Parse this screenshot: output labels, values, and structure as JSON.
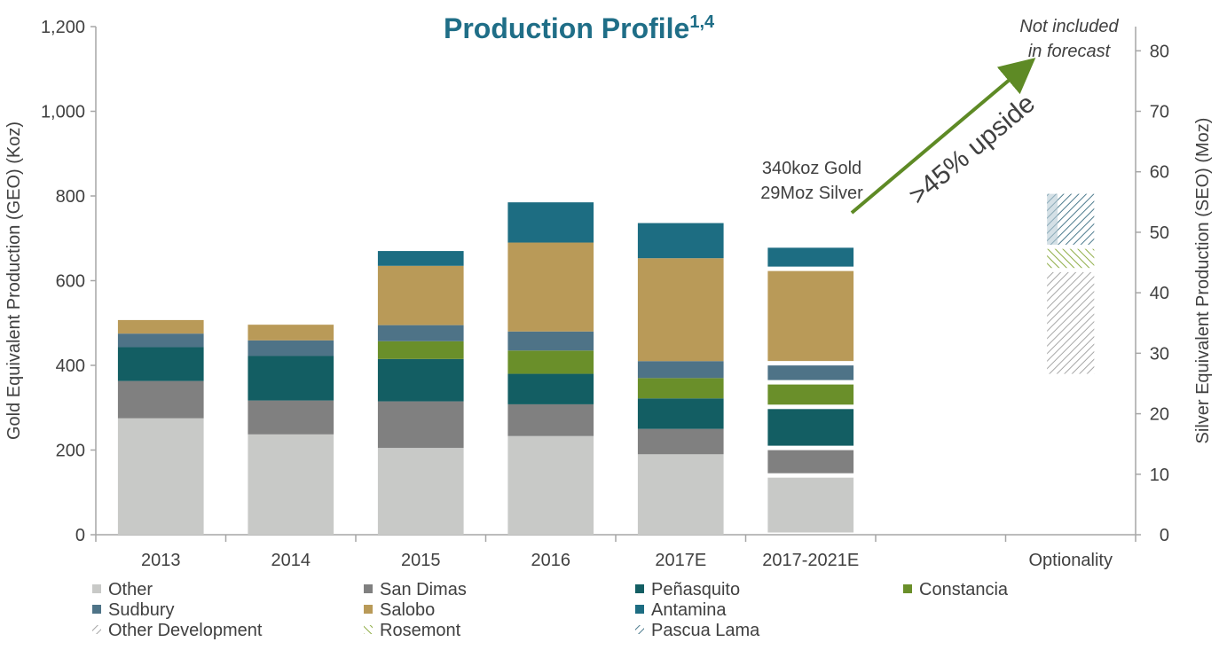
{
  "chart_data": {
    "type": "bar",
    "stacked": true,
    "title": "Production Profile",
    "title_superscript": "1,4",
    "ylabel_left": "Gold Equivalent  Production (GEO) (Koz)",
    "ylabel_right": "Silver Equivalent  Production (SEO) (Moz)",
    "ylim_left": [
      0,
      1200
    ],
    "yticks_left": [
      "0",
      "200",
      "400",
      "600",
      "800",
      "1,000",
      "1,200"
    ],
    "ylim_right": [
      0,
      84
    ],
    "yticks_right": [
      "0",
      "10",
      "20",
      "30",
      "40",
      "50",
      "60",
      "70",
      "80"
    ],
    "categories": [
      "2013",
      "2014",
      "2015",
      "2016",
      "2017E",
      "2017-2021E",
      "",
      "Optionality"
    ],
    "series": [
      {
        "name": "Other",
        "color": "#c8c9c7",
        "values": [
          275,
          237,
          205,
          233,
          190,
          140,
          null,
          null
        ]
      },
      {
        "name": "San Dimas",
        "color": "#808080",
        "values": [
          88,
          80,
          110,
          75,
          60,
          65,
          null,
          null
        ]
      },
      {
        "name": "Peñasquito",
        "color": "#135e63",
        "values": [
          80,
          105,
          100,
          72,
          72,
          97,
          null,
          null
        ]
      },
      {
        "name": "Constancia",
        "color": "#6a8f2a",
        "values": [
          0,
          0,
          42,
          55,
          48,
          58,
          null,
          null
        ]
      },
      {
        "name": "Sudbury",
        "color": "#4e7387",
        "values": [
          32,
          37,
          38,
          45,
          40,
          45,
          null,
          null
        ]
      },
      {
        "name": "Salobo",
        "color": "#b99a58",
        "values": [
          32,
          37,
          140,
          210,
          243,
          223,
          null,
          null
        ]
      },
      {
        "name": "Antamina",
        "color": "#1d6d82",
        "values": [
          0,
          0,
          35,
          95,
          83,
          55,
          null,
          null
        ]
      }
    ],
    "optionality": [
      {
        "name": "Other Development",
        "color": "#a6a6a6",
        "range": [
          380,
          620
        ]
      },
      {
        "name": "Rosemont",
        "color": "#8fad46",
        "range": [
          630,
          675
        ]
      },
      {
        "name": "Pascua Lama",
        "color": "#4f7d8f",
        "range": [
          685,
          805
        ]
      }
    ],
    "annotations": {
      "not_included": [
        "Not included",
        "in forecast"
      ],
      "callout": [
        "340koz Gold",
        "29Moz Silver"
      ],
      "upside": ">45% upside"
    },
    "legend_placement": "bottom"
  }
}
